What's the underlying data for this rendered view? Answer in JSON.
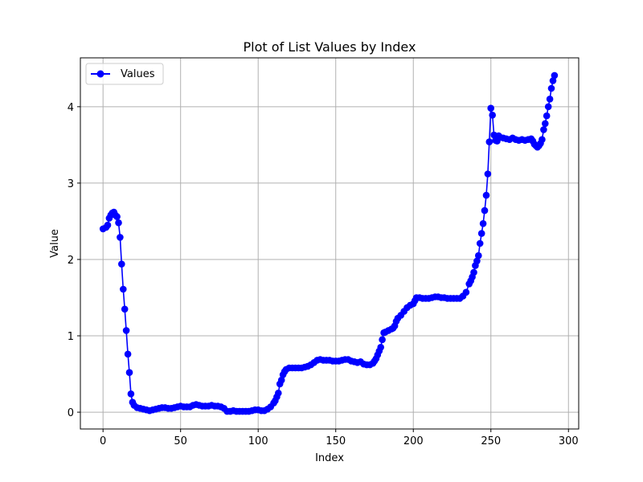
{
  "chart_data": {
    "type": "line",
    "title": "Plot of List Values by Index",
    "xlabel": "Index",
    "ylabel": "Value",
    "xlim": [
      -14.6,
      306.6
    ],
    "ylim": [
      -0.22,
      4.64
    ],
    "x_ticks": [
      0,
      50,
      100,
      150,
      200,
      250,
      300
    ],
    "y_ticks": [
      0,
      1,
      2,
      3,
      4
    ],
    "grid": true,
    "legend_position": "top-left",
    "series": [
      {
        "name": "Values",
        "color": "#0000ff",
        "marker": "circle",
        "points": [
          [
            0,
            2.4
          ],
          [
            2,
            2.42
          ],
          [
            3,
            2.45
          ],
          [
            4,
            2.54
          ],
          [
            5,
            2.58
          ],
          [
            6,
            2.61
          ],
          [
            7,
            2.62
          ],
          [
            8,
            2.58
          ],
          [
            9,
            2.56
          ],
          [
            10,
            2.48
          ],
          [
            11,
            2.29
          ],
          [
            12,
            1.94
          ],
          [
            13,
            1.61
          ],
          [
            14,
            1.35
          ],
          [
            15,
            1.07
          ],
          [
            16,
            0.76
          ],
          [
            17,
            0.52
          ],
          [
            18,
            0.24
          ],
          [
            19,
            0.13
          ],
          [
            20,
            0.09
          ],
          [
            22,
            0.06
          ],
          [
            24,
            0.05
          ],
          [
            26,
            0.04
          ],
          [
            28,
            0.03
          ],
          [
            30,
            0.02
          ],
          [
            32,
            0.03
          ],
          [
            34,
            0.04
          ],
          [
            36,
            0.05
          ],
          [
            38,
            0.06
          ],
          [
            40,
            0.06
          ],
          [
            42,
            0.05
          ],
          [
            44,
            0.05
          ],
          [
            46,
            0.06
          ],
          [
            48,
            0.07
          ],
          [
            50,
            0.08
          ],
          [
            52,
            0.07
          ],
          [
            54,
            0.07
          ],
          [
            56,
            0.07
          ],
          [
            58,
            0.09
          ],
          [
            60,
            0.1
          ],
          [
            62,
            0.09
          ],
          [
            64,
            0.08
          ],
          [
            66,
            0.08
          ],
          [
            68,
            0.08
          ],
          [
            70,
            0.09
          ],
          [
            72,
            0.08
          ],
          [
            74,
            0.08
          ],
          [
            76,
            0.07
          ],
          [
            78,
            0.05
          ],
          [
            80,
            0.01
          ],
          [
            82,
            0.01
          ],
          [
            84,
            0.02
          ],
          [
            86,
            0.01
          ],
          [
            88,
            0.01
          ],
          [
            90,
            0.01
          ],
          [
            92,
            0.01
          ],
          [
            94,
            0.01
          ],
          [
            96,
            0.02
          ],
          [
            98,
            0.03
          ],
          [
            100,
            0.03
          ],
          [
            102,
            0.02
          ],
          [
            104,
            0.02
          ],
          [
            106,
            0.04
          ],
          [
            108,
            0.07
          ],
          [
            110,
            0.12
          ],
          [
            111,
            0.15
          ],
          [
            112,
            0.2
          ],
          [
            113,
            0.25
          ],
          [
            114,
            0.37
          ],
          [
            115,
            0.42
          ],
          [
            116,
            0.49
          ],
          [
            117,
            0.53
          ],
          [
            118,
            0.56
          ],
          [
            120,
            0.58
          ],
          [
            122,
            0.58
          ],
          [
            124,
            0.58
          ],
          [
            126,
            0.58
          ],
          [
            128,
            0.58
          ],
          [
            130,
            0.59
          ],
          [
            132,
            0.6
          ],
          [
            134,
            0.62
          ],
          [
            136,
            0.65
          ],
          [
            138,
            0.68
          ],
          [
            140,
            0.69
          ],
          [
            142,
            0.68
          ],
          [
            144,
            0.68
          ],
          [
            146,
            0.68
          ],
          [
            148,
            0.67
          ],
          [
            150,
            0.67
          ],
          [
            152,
            0.67
          ],
          [
            154,
            0.68
          ],
          [
            156,
            0.69
          ],
          [
            158,
            0.69
          ],
          [
            160,
            0.67
          ],
          [
            162,
            0.66
          ],
          [
            164,
            0.65
          ],
          [
            166,
            0.66
          ],
          [
            168,
            0.63
          ],
          [
            170,
            0.62
          ],
          [
            172,
            0.62
          ],
          [
            174,
            0.64
          ],
          [
            175,
            0.67
          ],
          [
            176,
            0.7
          ],
          [
            177,
            0.75
          ],
          [
            178,
            0.8
          ],
          [
            179,
            0.85
          ],
          [
            180,
            0.95
          ],
          [
            181,
            1.04
          ],
          [
            182,
            1.05
          ],
          [
            184,
            1.07
          ],
          [
            186,
            1.09
          ],
          [
            187,
            1.1
          ],
          [
            188,
            1.13
          ],
          [
            189,
            1.19
          ],
          [
            190,
            1.23
          ],
          [
            192,
            1.27
          ],
          [
            194,
            1.32
          ],
          [
            196,
            1.37
          ],
          [
            198,
            1.4
          ],
          [
            200,
            1.42
          ],
          [
            201,
            1.46
          ],
          [
            202,
            1.5
          ],
          [
            204,
            1.5
          ],
          [
            206,
            1.49
          ],
          [
            208,
            1.49
          ],
          [
            210,
            1.49
          ],
          [
            212,
            1.5
          ],
          [
            214,
            1.51
          ],
          [
            216,
            1.51
          ],
          [
            218,
            1.5
          ],
          [
            220,
            1.5
          ],
          [
            222,
            1.49
          ],
          [
            224,
            1.49
          ],
          [
            226,
            1.49
          ],
          [
            228,
            1.49
          ],
          [
            230,
            1.49
          ],
          [
            232,
            1.52
          ],
          [
            234,
            1.57
          ],
          [
            236,
            1.68
          ],
          [
            237,
            1.72
          ],
          [
            238,
            1.77
          ],
          [
            239,
            1.83
          ],
          [
            240,
            1.92
          ],
          [
            241,
            1.98
          ],
          [
            242,
            2.05
          ],
          [
            243,
            2.21
          ],
          [
            244,
            2.34
          ],
          [
            245,
            2.47
          ],
          [
            246,
            2.64
          ],
          [
            247,
            2.84
          ],
          [
            248,
            3.12
          ],
          [
            249,
            3.54
          ],
          [
            250,
            3.98
          ],
          [
            251,
            3.89
          ],
          [
            252,
            3.63
          ],
          [
            253,
            3.56
          ],
          [
            254,
            3.55
          ],
          [
            255,
            3.62
          ],
          [
            256,
            3.6
          ],
          [
            258,
            3.59
          ],
          [
            260,
            3.58
          ],
          [
            262,
            3.57
          ],
          [
            264,
            3.59
          ],
          [
            266,
            3.57
          ],
          [
            268,
            3.56
          ],
          [
            270,
            3.57
          ],
          [
            272,
            3.56
          ],
          [
            274,
            3.57
          ],
          [
            276,
            3.58
          ],
          [
            277,
            3.55
          ],
          [
            278,
            3.51
          ],
          [
            279,
            3.49
          ],
          [
            280,
            3.47
          ],
          [
            281,
            3.49
          ],
          [
            282,
            3.52
          ],
          [
            283,
            3.57
          ],
          [
            284,
            3.7
          ],
          [
            285,
            3.78
          ],
          [
            286,
            3.88
          ],
          [
            287,
            4.0
          ],
          [
            288,
            4.1
          ],
          [
            289,
            4.24
          ],
          [
            290,
            4.34
          ],
          [
            291,
            4.41
          ]
        ]
      }
    ]
  }
}
